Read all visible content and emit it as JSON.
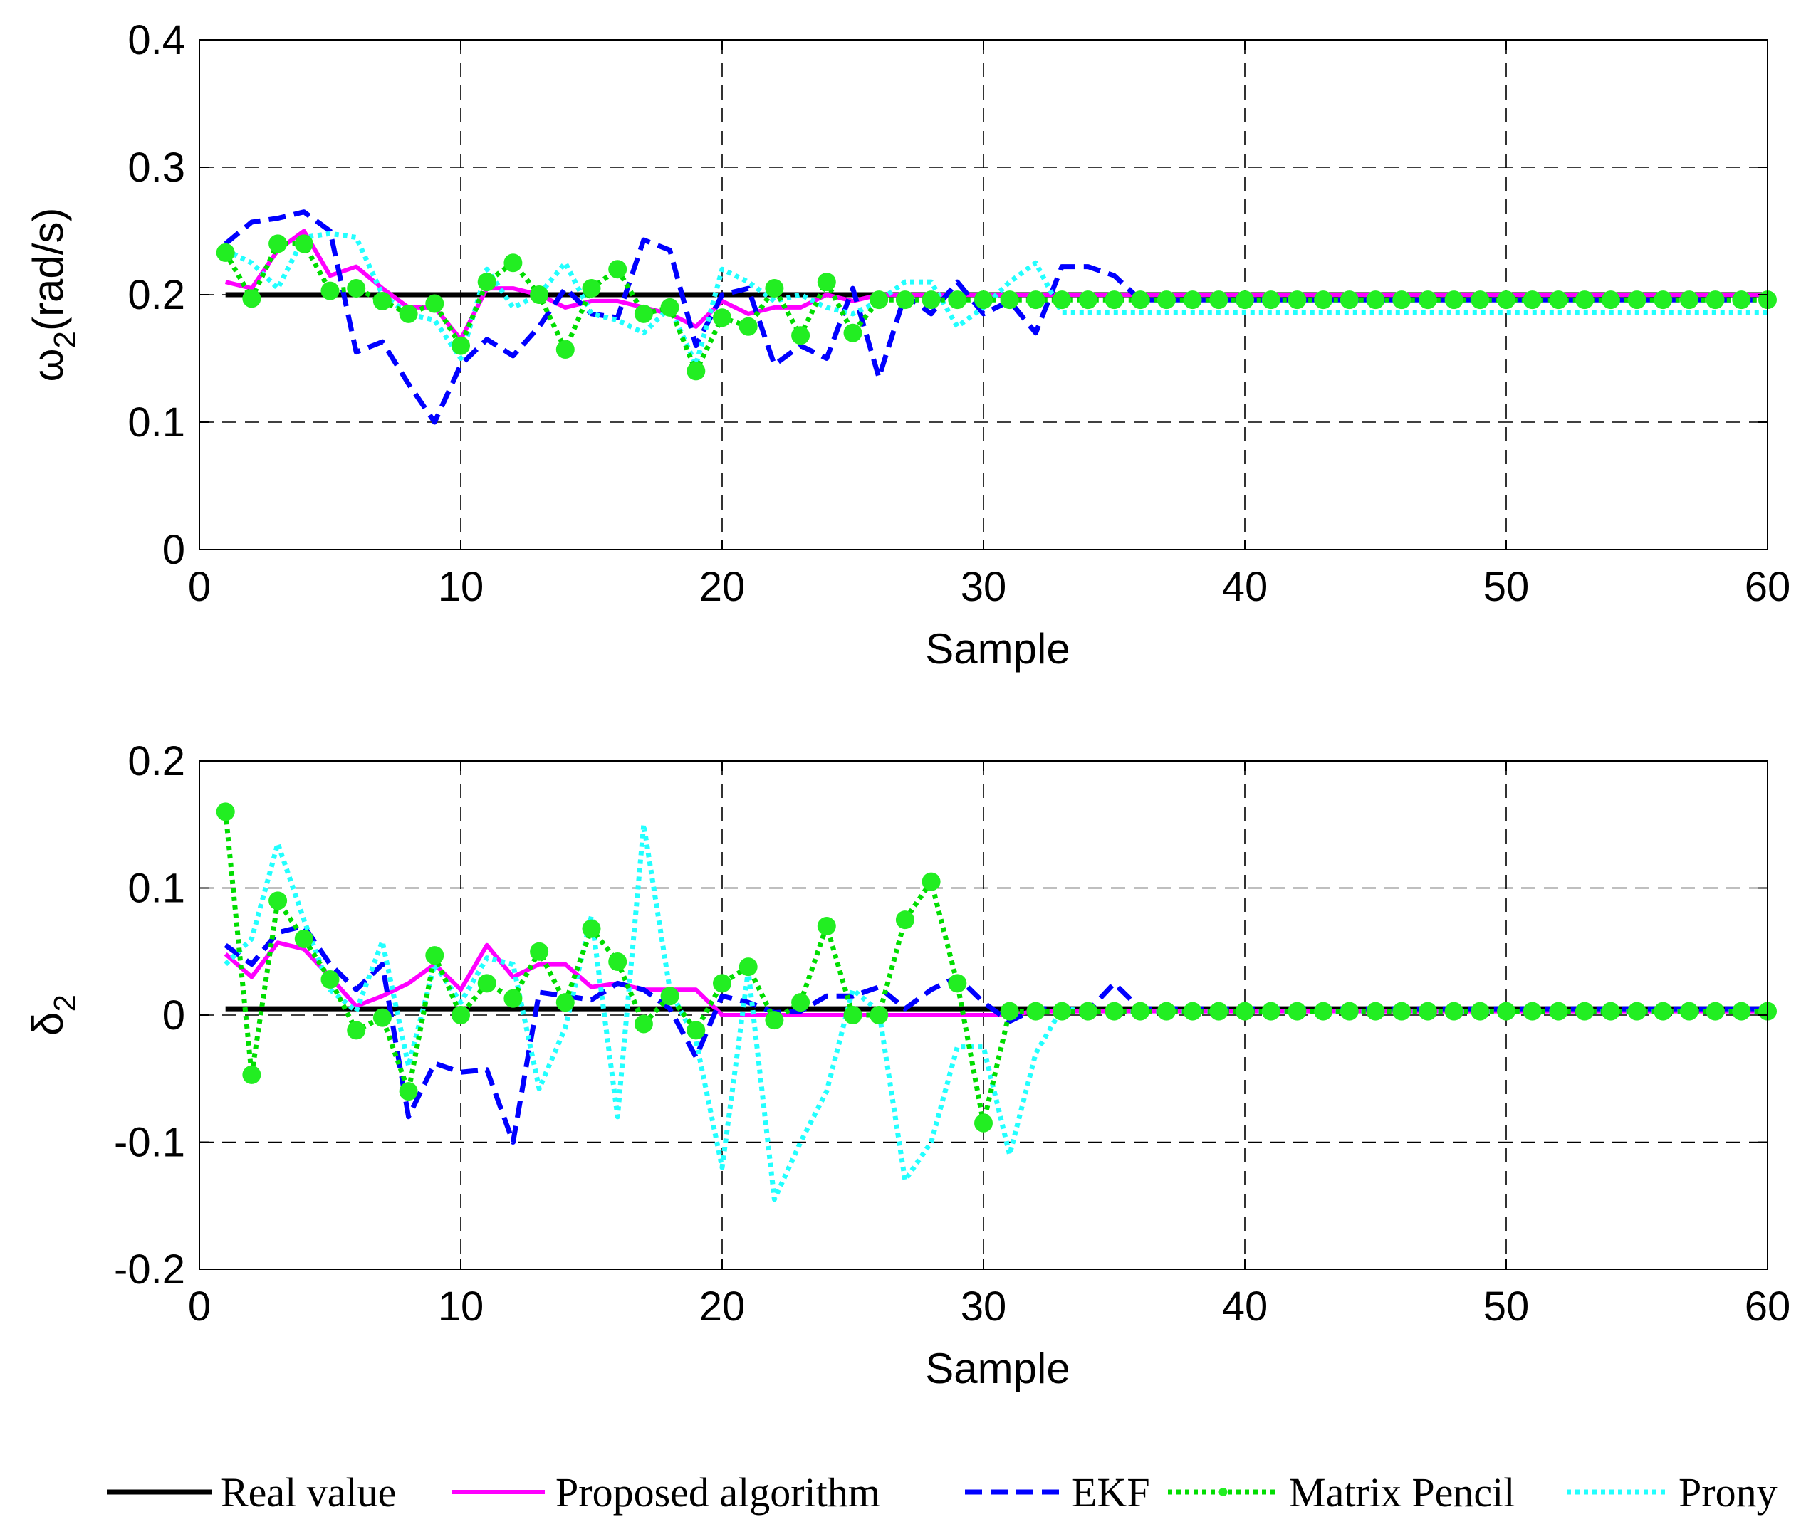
{
  "colors": {
    "real": "#000000",
    "proposed": "#ff00ff",
    "ekf": "#0000ff",
    "matrix_pencil": "#00dd00",
    "matrix_pencil_marker": "#22ee22",
    "prony": "#22ffff"
  },
  "legend": [
    {
      "key": "real",
      "label": "Real value",
      "style": "solid"
    },
    {
      "key": "proposed",
      "label": "Proposed algorithm",
      "style": "solid"
    },
    {
      "key": "ekf",
      "label": "EKF",
      "style": "dashed"
    },
    {
      "key": "matrix_pencil",
      "label": "Matrix Pencil",
      "style": "dotted"
    },
    {
      "key": "prony",
      "label": "Prony",
      "style": "dotted"
    }
  ],
  "chart_data": [
    {
      "type": "line",
      "ylabel_symbol": "ω",
      "ylabel_sub": "2",
      "ylabel_unit": "(rad/s)",
      "xlabel": "Sample",
      "xlim": [
        0,
        60
      ],
      "ylim": [
        0,
        0.4
      ],
      "xticks": [
        "0",
        "10",
        "20",
        "30",
        "40",
        "50",
        "60"
      ],
      "yticks": [
        "0",
        "0.1",
        "0.2",
        "0.3",
        "0.4"
      ],
      "x": [
        1,
        2,
        3,
        4,
        5,
        6,
        7,
        8,
        9,
        10,
        11,
        12,
        13,
        14,
        15,
        16,
        17,
        18,
        19,
        20,
        21,
        22,
        23,
        24,
        25,
        26,
        27,
        28,
        29,
        30,
        31,
        32,
        33,
        34,
        35,
        36,
        37,
        38,
        39,
        40,
        41,
        42,
        43,
        44,
        45,
        46,
        47,
        48,
        49,
        50,
        51,
        52,
        53,
        54,
        55,
        56,
        57,
        58,
        59,
        60
      ],
      "series": [
        {
          "name": "Real value",
          "key": "real",
          "values": [
            0.2,
            0.2,
            0.2,
            0.2,
            0.2,
            0.2,
            0.2,
            0.2,
            0.2,
            0.2,
            0.2,
            0.2,
            0.2,
            0.2,
            0.2,
            0.2,
            0.2,
            0.2,
            0.2,
            0.2,
            0.2,
            0.2,
            0.2,
            0.2,
            0.2,
            0.2,
            0.2,
            0.2,
            0.2,
            0.2,
            0.2,
            0.2,
            0.2,
            0.2,
            0.2,
            0.2,
            0.2,
            0.2,
            0.2,
            0.2,
            0.2,
            0.2,
            0.2,
            0.2,
            0.2,
            0.2,
            0.2,
            0.2,
            0.2,
            0.2,
            0.2,
            0.2,
            0.2,
            0.2,
            0.2,
            0.2,
            0.2,
            0.2,
            0.2,
            0.2
          ]
        },
        {
          "name": "Proposed algorithm",
          "key": "proposed",
          "values": [
            0.21,
            0.205,
            0.235,
            0.25,
            0.215,
            0.222,
            0.205,
            0.19,
            0.19,
            0.165,
            0.205,
            0.205,
            0.2,
            0.19,
            0.195,
            0.195,
            0.19,
            0.185,
            0.175,
            0.195,
            0.185,
            0.19,
            0.19,
            0.2,
            0.195,
            0.2,
            0.2,
            0.2,
            0.2,
            0.2,
            0.2,
            0.2,
            0.2,
            0.2,
            0.2,
            0.2,
            0.2,
            0.2,
            0.2,
            0.2,
            0.2,
            0.2,
            0.2,
            0.2,
            0.2,
            0.2,
            0.2,
            0.2,
            0.2,
            0.2,
            0.2,
            0.2,
            0.2,
            0.2,
            0.2,
            0.2,
            0.2,
            0.2,
            0.2,
            0.2
          ]
        },
        {
          "name": "EKF",
          "key": "ekf",
          "values": [
            0.24,
            0.257,
            0.26,
            0.265,
            0.25,
            0.155,
            0.163,
            0.13,
            0.1,
            0.145,
            0.165,
            0.152,
            0.175,
            0.205,
            0.185,
            0.182,
            0.243,
            0.235,
            0.16,
            0.2,
            0.205,
            0.145,
            0.16,
            0.15,
            0.205,
            0.135,
            0.2,
            0.185,
            0.21,
            0.185,
            0.195,
            0.17,
            0.222,
            0.222,
            0.215,
            0.196,
            0.196,
            0.196,
            0.196,
            0.196,
            0.196,
            0.196,
            0.196,
            0.196,
            0.196,
            0.196,
            0.196,
            0.196,
            0.196,
            0.196,
            0.196,
            0.196,
            0.196,
            0.196,
            0.196,
            0.196,
            0.196,
            0.196,
            0.196,
            0.196
          ]
        },
        {
          "name": "Matrix Pencil",
          "key": "matrix_pencil",
          "values": [
            0.233,
            0.197,
            0.24,
            0.24,
            0.203,
            0.205,
            0.195,
            0.185,
            0.193,
            0.16,
            0.21,
            0.225,
            0.2,
            0.157,
            0.205,
            0.22,
            0.185,
            0.19,
            0.14,
            0.182,
            0.175,
            0.205,
            0.168,
            0.21,
            0.17,
            0.196,
            0.196,
            0.196,
            0.196,
            0.196,
            0.196,
            0.196,
            0.196,
            0.196,
            0.196,
            0.196,
            0.196,
            0.196,
            0.196,
            0.196,
            0.196,
            0.196,
            0.196,
            0.196,
            0.196,
            0.196,
            0.196,
            0.196,
            0.196,
            0.196,
            0.196,
            0.196,
            0.196,
            0.196,
            0.196,
            0.196,
            0.196,
            0.196,
            0.196,
            0.196
          ]
        },
        {
          "name": "Prony",
          "key": "prony",
          "values": [
            0.235,
            0.225,
            0.205,
            0.245,
            0.248,
            0.245,
            0.2,
            0.185,
            0.18,
            0.15,
            0.22,
            0.19,
            0.2,
            0.225,
            0.185,
            0.18,
            0.17,
            0.19,
            0.145,
            0.22,
            0.21,
            0.195,
            0.2,
            0.19,
            0.185,
            0.195,
            0.21,
            0.21,
            0.175,
            0.19,
            0.21,
            0.225,
            0.186,
            0.186,
            0.186,
            0.186,
            0.186,
            0.186,
            0.186,
            0.186,
            0.186,
            0.186,
            0.186,
            0.186,
            0.186,
            0.186,
            0.186,
            0.186,
            0.186,
            0.186,
            0.186,
            0.186,
            0.186,
            0.186,
            0.186,
            0.186,
            0.186,
            0.186,
            0.186,
            0.186
          ]
        }
      ]
    },
    {
      "type": "line",
      "ylabel_symbol": "δ",
      "ylabel_sub": "2",
      "ylabel_unit": "",
      "xlabel": "Sample",
      "xlim": [
        0,
        60
      ],
      "ylim": [
        -0.2,
        0.2
      ],
      "xticks": [
        "0",
        "10",
        "20",
        "30",
        "40",
        "50",
        "60"
      ],
      "yticks": [
        "-0.2",
        "-0.1",
        "0",
        "0.1",
        "0.2"
      ],
      "x": [
        1,
        2,
        3,
        4,
        5,
        6,
        7,
        8,
        9,
        10,
        11,
        12,
        13,
        14,
        15,
        16,
        17,
        18,
        19,
        20,
        21,
        22,
        23,
        24,
        25,
        26,
        27,
        28,
        29,
        30,
        31,
        32,
        33,
        34,
        35,
        36,
        37,
        38,
        39,
        40,
        41,
        42,
        43,
        44,
        45,
        46,
        47,
        48,
        49,
        50,
        51,
        52,
        53,
        54,
        55,
        56,
        57,
        58,
        59,
        60
      ],
      "series": [
        {
          "name": "Real value",
          "key": "real",
          "values": [
            0.005,
            0.005,
            0.005,
            0.005,
            0.005,
            0.005,
            0.005,
            0.005,
            0.005,
            0.005,
            0.005,
            0.005,
            0.005,
            0.005,
            0.005,
            0.005,
            0.005,
            0.005,
            0.005,
            0.005,
            0.005,
            0.005,
            0.005,
            0.005,
            0.005,
            0.005,
            0.005,
            0.005,
            0.005,
            0.005,
            0.005,
            0.005,
            0.005,
            0.005,
            0.005,
            0.005,
            0.005,
            0.005,
            0.005,
            0.005,
            0.005,
            0.005,
            0.005,
            0.005,
            0.005,
            0.005,
            0.005,
            0.005,
            0.005,
            0.005,
            0.005,
            0.005,
            0.005,
            0.005,
            0.005,
            0.005,
            0.005,
            0.005,
            0.005,
            0.005
          ]
        },
        {
          "name": "Proposed algorithm",
          "key": "proposed",
          "values": [
            0.048,
            0.03,
            0.057,
            0.052,
            0.03,
            0.007,
            0.015,
            0.025,
            0.04,
            0.02,
            0.055,
            0.03,
            0.04,
            0.04,
            0.022,
            0.025,
            0.02,
            0.02,
            0.02,
            0.0,
            0.0,
            0.0,
            0.0,
            0.0,
            0.0,
            0.0,
            0.0,
            0.0,
            0.0,
            0.0,
            0.0,
            0.003,
            0.003,
            0.003,
            0.003,
            0.003,
            0.003,
            0.003,
            0.003,
            0.003,
            0.003,
            0.003,
            0.003,
            0.003,
            0.003,
            0.003,
            0.003,
            0.003,
            0.003,
            0.003,
            0.003,
            0.003,
            0.003,
            0.003,
            0.003,
            0.003,
            0.003,
            0.003,
            0.003,
            0.003
          ]
        },
        {
          "name": "EKF",
          "key": "ekf",
          "values": [
            0.055,
            0.04,
            0.065,
            0.07,
            0.04,
            0.02,
            0.04,
            -0.08,
            -0.038,
            -0.045,
            -0.043,
            -0.1,
            0.018,
            0.015,
            0.012,
            0.025,
            0.02,
            0.005,
            -0.033,
            0.015,
            0.01,
            0.002,
            0.003,
            0.015,
            0.015,
            0.022,
            0.005,
            0.02,
            0.03,
            0.01,
            -0.005,
            0.005,
            0.005,
            0.003,
            0.025,
            0.005,
            0.005,
            0.005,
            0.005,
            0.005,
            0.005,
            0.005,
            0.005,
            0.005,
            0.005,
            0.005,
            0.005,
            0.005,
            0.005,
            0.005,
            0.005,
            0.005,
            0.005,
            0.005,
            0.005,
            0.005,
            0.005,
            0.005,
            0.005,
            0.005
          ]
        },
        {
          "name": "Matrix Pencil",
          "key": "matrix_pencil",
          "values": [
            0.16,
            -0.047,
            0.09,
            0.06,
            0.028,
            -0.012,
            -0.002,
            -0.06,
            0.047,
            0.0,
            0.025,
            0.013,
            0.05,
            0.01,
            0.068,
            0.042,
            -0.007,
            0.015,
            -0.012,
            0.025,
            0.038,
            -0.004,
            0.01,
            0.07,
            0.0,
            0.0,
            0.075,
            0.105,
            0.025,
            -0.085,
            0.003,
            0.003,
            0.003,
            0.003,
            0.003,
            0.003,
            0.003,
            0.003,
            0.003,
            0.003,
            0.003,
            0.003,
            0.003,
            0.003,
            0.003,
            0.003,
            0.003,
            0.003,
            0.003,
            0.003,
            0.003,
            0.003,
            0.003,
            0.003,
            0.003,
            0.003,
            0.003,
            0.003,
            0.003,
            0.003
          ]
        },
        {
          "name": "Prony",
          "key": "prony",
          "values": [
            0.04,
            0.06,
            0.135,
            0.075,
            0.02,
            0.003,
            0.058,
            -0.04,
            0.04,
            0.01,
            0.045,
            0.04,
            -0.058,
            -0.01,
            0.078,
            -0.08,
            0.15,
            0.02,
            -0.02,
            -0.12,
            0.035,
            -0.145,
            -0.1,
            -0.06,
            0.02,
            0.003,
            -0.13,
            -0.1,
            -0.025,
            -0.025,
            -0.11,
            -0.03,
            0.005,
            0.003,
            0.003,
            0.003,
            0.003,
            0.003,
            0.003,
            0.003,
            0.003,
            0.003,
            0.003,
            0.003,
            0.003,
            0.003,
            0.003,
            0.003,
            0.003,
            0.003,
            0.003,
            0.003,
            0.003,
            0.003,
            0.003,
            0.003,
            0.003,
            0.003,
            0.003,
            0.003
          ]
        }
      ]
    }
  ]
}
